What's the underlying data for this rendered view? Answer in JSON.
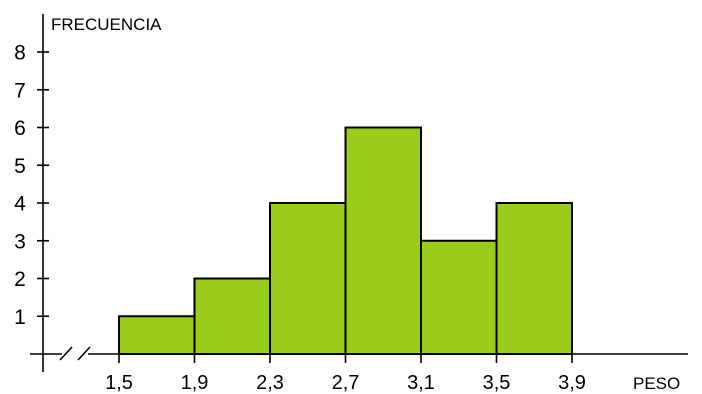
{
  "chart_data": {
    "type": "bar",
    "histogram": true,
    "x_edges": [
      "1,5",
      "1,9",
      "2,3",
      "2,7",
      "3,1",
      "3,5",
      "3,9"
    ],
    "bins": [
      {
        "from": 1.5,
        "to": 1.9,
        "value": 1
      },
      {
        "from": 1.9,
        "to": 2.3,
        "value": 2
      },
      {
        "from": 2.3,
        "to": 2.7,
        "value": 4
      },
      {
        "from": 2.7,
        "to": 3.1,
        "value": 6
      },
      {
        "from": 3.1,
        "to": 3.5,
        "value": 3
      },
      {
        "from": 3.5,
        "to": 3.9,
        "value": 4
      }
    ],
    "y_ticks": [
      "1",
      "2",
      "3",
      "4",
      "5",
      "6",
      "7",
      "8"
    ],
    "ylim": [
      0,
      8
    ],
    "xlabel": "PESO",
    "ylabel": "FRECUENCIA",
    "axis_break": true,
    "grid": false,
    "bar_color": "#9ACD1A",
    "edge_color": "#000000"
  }
}
